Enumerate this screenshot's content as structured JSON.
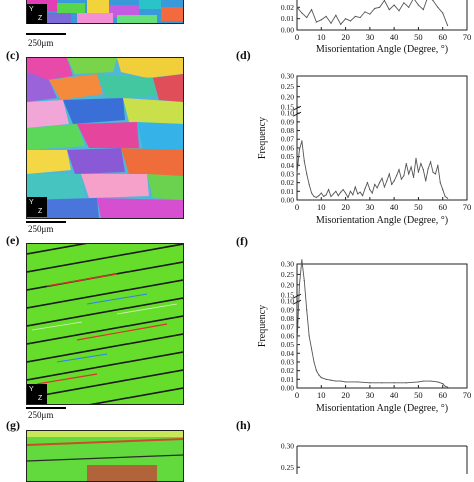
{
  "panels": {
    "b_partial": {
      "letter": "",
      "scale_label": "250μm"
    },
    "c": {
      "letter": "(c)",
      "scale_label": "250μm"
    },
    "d": {
      "letter": "(d)"
    },
    "e": {
      "letter": "(e)",
      "scale_label": "250μm"
    },
    "f": {
      "letter": "(f)"
    },
    "g": {
      "letter": "(g)"
    },
    "h": {
      "letter": "(h)"
    }
  },
  "triad": {
    "y_label": "Y",
    "z_label": "Z"
  },
  "chart_data": [
    {
      "id": "top_partial",
      "type": "line",
      "xlabel": "Misorientation Angle (Degree, °)",
      "ylabel": "",
      "xlim": [
        0,
        70
      ],
      "ylim": [
        0,
        0.03
      ],
      "y_ticks": [
        "0.00",
        "0.01",
        "0.02"
      ],
      "x_ticks": [
        "0",
        "10",
        "20",
        "30",
        "40",
        "50",
        "60",
        "70"
      ],
      "x": [
        0,
        2,
        4,
        6,
        8,
        10,
        12,
        14,
        16,
        18,
        20,
        22,
        24,
        26,
        28,
        30,
        32,
        34,
        36,
        38,
        40,
        42,
        44,
        46,
        48,
        50,
        52,
        54,
        56,
        58,
        60,
        62
      ],
      "values": [
        0.02,
        0.015,
        0.011,
        0.018,
        0.007,
        0.009,
        0.012,
        0.006,
        0.013,
        0.005,
        0.01,
        0.008,
        0.012,
        0.011,
        0.016,
        0.014,
        0.019,
        0.02,
        0.026,
        0.018,
        0.022,
        0.017,
        0.024,
        0.02,
        0.028,
        0.022,
        0.018,
        0.03,
        0.026,
        0.02,
        0.015,
        0.004
      ]
    },
    {
      "id": "d",
      "type": "line",
      "xlabel": "Misorientation Angle (Degree, °)",
      "ylabel": "Frequency",
      "xlim": [
        0,
        70
      ],
      "ylim": [
        0,
        0.3
      ],
      "y_ticks": [
        "0.00",
        "0.01",
        "0.02",
        "0.03",
        "0.04",
        "0.05",
        "0.06",
        "0.07",
        "0.08",
        "0.09",
        "0.10",
        "0.15",
        "0.20",
        "0.25",
        "0.30"
      ],
      "x_ticks": [
        "0",
        "10",
        "20",
        "30",
        "40",
        "50",
        "60",
        "70"
      ],
      "x": [
        0,
        1,
        2,
        3,
        4,
        5,
        6,
        7,
        8,
        9,
        10,
        11,
        12,
        13,
        14,
        15,
        16,
        17,
        18,
        19,
        20,
        21,
        22,
        23,
        24,
        25,
        26,
        27,
        28,
        29,
        30,
        31,
        32,
        33,
        34,
        35,
        36,
        37,
        38,
        39,
        40,
        41,
        42,
        43,
        44,
        45,
        46,
        47,
        48,
        49,
        50,
        51,
        52,
        53,
        54,
        55,
        56,
        57,
        58,
        59,
        60,
        61,
        62
      ],
      "values": [
        0.03,
        0.058,
        0.068,
        0.045,
        0.03,
        0.018,
        0.008,
        0.004,
        0.003,
        0.005,
        0.008,
        0.004,
        0.006,
        0.012,
        0.004,
        0.007,
        0.01,
        0.005,
        0.009,
        0.012,
        0.008,
        0.003,
        0.01,
        0.006,
        0.015,
        0.007,
        0.009,
        0.005,
        0.013,
        0.02,
        0.012,
        0.008,
        0.018,
        0.014,
        0.02,
        0.025,
        0.015,
        0.022,
        0.03,
        0.018,
        0.022,
        0.028,
        0.035,
        0.024,
        0.028,
        0.042,
        0.03,
        0.038,
        0.026,
        0.048,
        0.032,
        0.042,
        0.035,
        0.022,
        0.036,
        0.044,
        0.032,
        0.03,
        0.04,
        0.02,
        0.012,
        0.004,
        0.002
      ]
    },
    {
      "id": "f",
      "type": "line",
      "xlabel": "Misorientation Angle (Degree, °)",
      "ylabel": "Frequency",
      "xlim": [
        0,
        70
      ],
      "ylim": [
        0,
        0.3
      ],
      "y_ticks": [
        "0.00",
        "0.01",
        "0.02",
        "0.03",
        "0.04",
        "0.05",
        "0.06",
        "0.07",
        "0.08",
        "0.09",
        "0.10",
        "0.15",
        "0.20",
        "0.25",
        "0.30"
      ],
      "x_ticks": [
        "0",
        "10",
        "20",
        "30",
        "40",
        "50",
        "60",
        "70"
      ],
      "x": [
        0,
        1,
        2,
        3,
        4,
        5,
        6,
        7,
        8,
        9,
        10,
        12,
        14,
        16,
        18,
        20,
        25,
        30,
        35,
        40,
        45,
        50,
        52,
        55,
        58,
        60,
        61,
        62
      ],
      "values": [
        0.05,
        0.2,
        0.32,
        0.22,
        0.09,
        0.06,
        0.045,
        0.03,
        0.02,
        0.015,
        0.012,
        0.01,
        0.009,
        0.008,
        0.008,
        0.007,
        0.007,
        0.006,
        0.006,
        0.006,
        0.006,
        0.007,
        0.008,
        0.008,
        0.007,
        0.005,
        0.002,
        0.001
      ]
    },
    {
      "id": "h_partial",
      "type": "line",
      "xlabel": "",
      "ylabel": "",
      "y_ticks": [
        "0.30",
        "0.25"
      ],
      "ylim": [
        0.22,
        0.3
      ]
    }
  ]
}
